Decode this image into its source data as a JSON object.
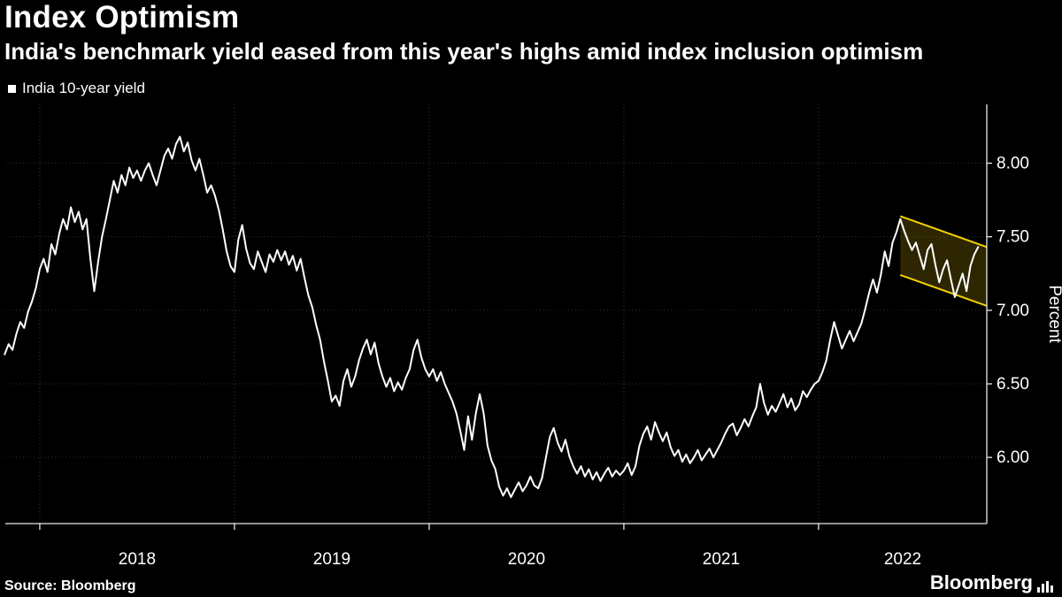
{
  "header": {
    "title": "Index Optimism",
    "subtitle": "India's benchmark yield eased from this year's highs amid index inclusion optimism"
  },
  "legend": {
    "label": "India 10-year yield",
    "marker_color": "#ffffff"
  },
  "footer": {
    "source": "Source: Bloomberg",
    "brand": "Bloomberg"
  },
  "chart_data": {
    "type": "line",
    "title": "Index Optimism",
    "subtitle": "India's benchmark yield eased from this year's highs amid index inclusion optimism",
    "xlabel": "",
    "ylabel": "Percent",
    "xlim": [
      2017.823,
      2022.864
    ],
    "ylim": [
      5.55,
      8.4
    ],
    "yticks": [
      6.0,
      6.5,
      7.0,
      7.5,
      8.0
    ],
    "xticks_years": [
      2018,
      2019,
      2020,
      2021,
      2022
    ],
    "grid": true,
    "legend_position": "top-left",
    "line_color": "#ffffff",
    "highlight_color": "#f7d200",
    "annotations": [
      {
        "type": "channel",
        "note": "yellow down-sloping channel marking yield easing from 2022 highs",
        "color": "#f7d200",
        "fill": "rgba(247,210,0,0.18)",
        "polygon": [
          [
            2022.42,
            7.64
          ],
          [
            2022.864,
            7.43
          ],
          [
            2022.864,
            7.03
          ],
          [
            2022.42,
            7.24
          ]
        ]
      }
    ],
    "series": [
      {
        "name": "India 10-year yield",
        "color": "#ffffff",
        "points": [
          [
            2017.82,
            6.7
          ],
          [
            2017.84,
            6.77
          ],
          [
            2017.86,
            6.73
          ],
          [
            2017.88,
            6.84
          ],
          [
            2017.9,
            6.92
          ],
          [
            2017.92,
            6.88
          ],
          [
            2017.94,
            6.99
          ],
          [
            2017.96,
            7.06
          ],
          [
            2017.98,
            7.15
          ],
          [
            2018.0,
            7.28
          ],
          [
            2018.02,
            7.35
          ],
          [
            2018.04,
            7.26
          ],
          [
            2018.06,
            7.45
          ],
          [
            2018.08,
            7.38
          ],
          [
            2018.1,
            7.52
          ],
          [
            2018.12,
            7.62
          ],
          [
            2018.14,
            7.55
          ],
          [
            2018.16,
            7.7
          ],
          [
            2018.18,
            7.6
          ],
          [
            2018.2,
            7.67
          ],
          [
            2018.22,
            7.55
          ],
          [
            2018.24,
            7.62
          ],
          [
            2018.26,
            7.35
          ],
          [
            2018.28,
            7.13
          ],
          [
            2018.3,
            7.33
          ],
          [
            2018.32,
            7.5
          ],
          [
            2018.34,
            7.62
          ],
          [
            2018.36,
            7.75
          ],
          [
            2018.38,
            7.88
          ],
          [
            2018.4,
            7.8
          ],
          [
            2018.42,
            7.92
          ],
          [
            2018.44,
            7.85
          ],
          [
            2018.46,
            7.97
          ],
          [
            2018.48,
            7.9
          ],
          [
            2018.5,
            7.95
          ],
          [
            2018.52,
            7.88
          ],
          [
            2018.54,
            7.95
          ],
          [
            2018.56,
            8.0
          ],
          [
            2018.58,
            7.92
          ],
          [
            2018.6,
            7.85
          ],
          [
            2018.62,
            7.95
          ],
          [
            2018.64,
            8.05
          ],
          [
            2018.66,
            8.1
          ],
          [
            2018.68,
            8.03
          ],
          [
            2018.7,
            8.13
          ],
          [
            2018.72,
            8.18
          ],
          [
            2018.74,
            8.08
          ],
          [
            2018.76,
            8.14
          ],
          [
            2018.78,
            8.02
          ],
          [
            2018.8,
            7.95
          ],
          [
            2018.82,
            8.03
          ],
          [
            2018.84,
            7.92
          ],
          [
            2018.86,
            7.8
          ],
          [
            2018.88,
            7.85
          ],
          [
            2018.9,
            7.78
          ],
          [
            2018.92,
            7.68
          ],
          [
            2018.94,
            7.55
          ],
          [
            2018.96,
            7.4
          ],
          [
            2018.98,
            7.3
          ],
          [
            2019.0,
            7.26
          ],
          [
            2019.02,
            7.48
          ],
          [
            2019.04,
            7.58
          ],
          [
            2019.06,
            7.42
          ],
          [
            2019.08,
            7.32
          ],
          [
            2019.1,
            7.28
          ],
          [
            2019.12,
            7.4
          ],
          [
            2019.14,
            7.33
          ],
          [
            2019.16,
            7.26
          ],
          [
            2019.18,
            7.38
          ],
          [
            2019.2,
            7.33
          ],
          [
            2019.22,
            7.41
          ],
          [
            2019.24,
            7.34
          ],
          [
            2019.26,
            7.4
          ],
          [
            2019.28,
            7.31
          ],
          [
            2019.3,
            7.37
          ],
          [
            2019.32,
            7.27
          ],
          [
            2019.34,
            7.35
          ],
          [
            2019.36,
            7.22
          ],
          [
            2019.38,
            7.1
          ],
          [
            2019.4,
            7.02
          ],
          [
            2019.42,
            6.9
          ],
          [
            2019.44,
            6.8
          ],
          [
            2019.46,
            6.65
          ],
          [
            2019.48,
            6.52
          ],
          [
            2019.5,
            6.38
          ],
          [
            2019.52,
            6.42
          ],
          [
            2019.54,
            6.35
          ],
          [
            2019.56,
            6.52
          ],
          [
            2019.58,
            6.6
          ],
          [
            2019.6,
            6.48
          ],
          [
            2019.62,
            6.55
          ],
          [
            2019.64,
            6.66
          ],
          [
            2019.66,
            6.74
          ],
          [
            2019.68,
            6.8
          ],
          [
            2019.7,
            6.7
          ],
          [
            2019.72,
            6.78
          ],
          [
            2019.74,
            6.64
          ],
          [
            2019.76,
            6.55
          ],
          [
            2019.78,
            6.48
          ],
          [
            2019.8,
            6.54
          ],
          [
            2019.82,
            6.45
          ],
          [
            2019.84,
            6.51
          ],
          [
            2019.86,
            6.46
          ],
          [
            2019.88,
            6.54
          ],
          [
            2019.9,
            6.6
          ],
          [
            2019.92,
            6.73
          ],
          [
            2019.94,
            6.8
          ],
          [
            2019.96,
            6.68
          ],
          [
            2019.98,
            6.6
          ],
          [
            2020.0,
            6.55
          ],
          [
            2020.02,
            6.6
          ],
          [
            2020.04,
            6.52
          ],
          [
            2020.06,
            6.58
          ],
          [
            2020.08,
            6.5
          ],
          [
            2020.1,
            6.44
          ],
          [
            2020.12,
            6.38
          ],
          [
            2020.14,
            6.3
          ],
          [
            2020.16,
            6.18
          ],
          [
            2020.18,
            6.05
          ],
          [
            2020.2,
            6.28
          ],
          [
            2020.22,
            6.12
          ],
          [
            2020.24,
            6.3
          ],
          [
            2020.26,
            6.43
          ],
          [
            2020.28,
            6.3
          ],
          [
            2020.3,
            6.08
          ],
          [
            2020.32,
            5.98
          ],
          [
            2020.34,
            5.92
          ],
          [
            2020.36,
            5.8
          ],
          [
            2020.38,
            5.74
          ],
          [
            2020.4,
            5.79
          ],
          [
            2020.42,
            5.73
          ],
          [
            2020.44,
            5.78
          ],
          [
            2020.46,
            5.83
          ],
          [
            2020.48,
            5.77
          ],
          [
            2020.5,
            5.81
          ],
          [
            2020.52,
            5.87
          ],
          [
            2020.54,
            5.81
          ],
          [
            2020.56,
            5.79
          ],
          [
            2020.58,
            5.86
          ],
          [
            2020.6,
            6.0
          ],
          [
            2020.62,
            6.14
          ],
          [
            2020.64,
            6.2
          ],
          [
            2020.66,
            6.1
          ],
          [
            2020.68,
            6.04
          ],
          [
            2020.7,
            6.12
          ],
          [
            2020.72,
            6.01
          ],
          [
            2020.74,
            5.94
          ],
          [
            2020.76,
            5.89
          ],
          [
            2020.78,
            5.94
          ],
          [
            2020.8,
            5.87
          ],
          [
            2020.82,
            5.92
          ],
          [
            2020.84,
            5.85
          ],
          [
            2020.86,
            5.9
          ],
          [
            2020.88,
            5.84
          ],
          [
            2020.9,
            5.89
          ],
          [
            2020.92,
            5.93
          ],
          [
            2020.94,
            5.87
          ],
          [
            2020.96,
            5.91
          ],
          [
            2020.98,
            5.88
          ],
          [
            2021.0,
            5.91
          ],
          [
            2021.02,
            5.96
          ],
          [
            2021.04,
            5.88
          ],
          [
            2021.06,
            5.94
          ],
          [
            2021.08,
            6.08
          ],
          [
            2021.1,
            6.16
          ],
          [
            2021.12,
            6.21
          ],
          [
            2021.14,
            6.12
          ],
          [
            2021.16,
            6.24
          ],
          [
            2021.18,
            6.17
          ],
          [
            2021.2,
            6.11
          ],
          [
            2021.22,
            6.17
          ],
          [
            2021.24,
            6.07
          ],
          [
            2021.26,
            6.01
          ],
          [
            2021.28,
            6.05
          ],
          [
            2021.3,
            5.97
          ],
          [
            2021.32,
            6.02
          ],
          [
            2021.34,
            5.96
          ],
          [
            2021.36,
            6.0
          ],
          [
            2021.38,
            6.05
          ],
          [
            2021.4,
            5.98
          ],
          [
            2021.42,
            6.02
          ],
          [
            2021.44,
            6.06
          ],
          [
            2021.46,
            6.0
          ],
          [
            2021.48,
            6.05
          ],
          [
            2021.5,
            6.1
          ],
          [
            2021.52,
            6.16
          ],
          [
            2021.54,
            6.21
          ],
          [
            2021.56,
            6.23
          ],
          [
            2021.58,
            6.15
          ],
          [
            2021.6,
            6.2
          ],
          [
            2021.62,
            6.26
          ],
          [
            2021.64,
            6.21
          ],
          [
            2021.66,
            6.28
          ],
          [
            2021.68,
            6.34
          ],
          [
            2021.7,
            6.5
          ],
          [
            2021.72,
            6.37
          ],
          [
            2021.74,
            6.29
          ],
          [
            2021.76,
            6.35
          ],
          [
            2021.78,
            6.31
          ],
          [
            2021.8,
            6.37
          ],
          [
            2021.82,
            6.43
          ],
          [
            2021.84,
            6.34
          ],
          [
            2021.86,
            6.4
          ],
          [
            2021.88,
            6.32
          ],
          [
            2021.9,
            6.36
          ],
          [
            2021.92,
            6.45
          ],
          [
            2021.94,
            6.41
          ],
          [
            2021.96,
            6.46
          ],
          [
            2021.98,
            6.5
          ],
          [
            2022.0,
            6.52
          ],
          [
            2022.02,
            6.58
          ],
          [
            2022.04,
            6.66
          ],
          [
            2022.06,
            6.8
          ],
          [
            2022.08,
            6.92
          ],
          [
            2022.1,
            6.83
          ],
          [
            2022.12,
            6.74
          ],
          [
            2022.14,
            6.8
          ],
          [
            2022.16,
            6.86
          ],
          [
            2022.18,
            6.79
          ],
          [
            2022.2,
            6.85
          ],
          [
            2022.22,
            6.91
          ],
          [
            2022.24,
            7.01
          ],
          [
            2022.26,
            7.12
          ],
          [
            2022.28,
            7.21
          ],
          [
            2022.3,
            7.12
          ],
          [
            2022.32,
            7.24
          ],
          [
            2022.34,
            7.4
          ],
          [
            2022.36,
            7.3
          ],
          [
            2022.38,
            7.46
          ],
          [
            2022.4,
            7.53
          ],
          [
            2022.42,
            7.62
          ],
          [
            2022.44,
            7.54
          ],
          [
            2022.46,
            7.47
          ],
          [
            2022.48,
            7.41
          ],
          [
            2022.5,
            7.46
          ],
          [
            2022.52,
            7.37
          ],
          [
            2022.54,
            7.28
          ],
          [
            2022.56,
            7.41
          ],
          [
            2022.58,
            7.45
          ],
          [
            2022.6,
            7.31
          ],
          [
            2022.62,
            7.19
          ],
          [
            2022.64,
            7.28
          ],
          [
            2022.66,
            7.34
          ],
          [
            2022.68,
            7.21
          ],
          [
            2022.7,
            7.09
          ],
          [
            2022.72,
            7.17
          ],
          [
            2022.74,
            7.25
          ],
          [
            2022.76,
            7.13
          ],
          [
            2022.78,
            7.3
          ],
          [
            2022.8,
            7.38
          ],
          [
            2022.82,
            7.43
          ]
        ]
      }
    ]
  }
}
